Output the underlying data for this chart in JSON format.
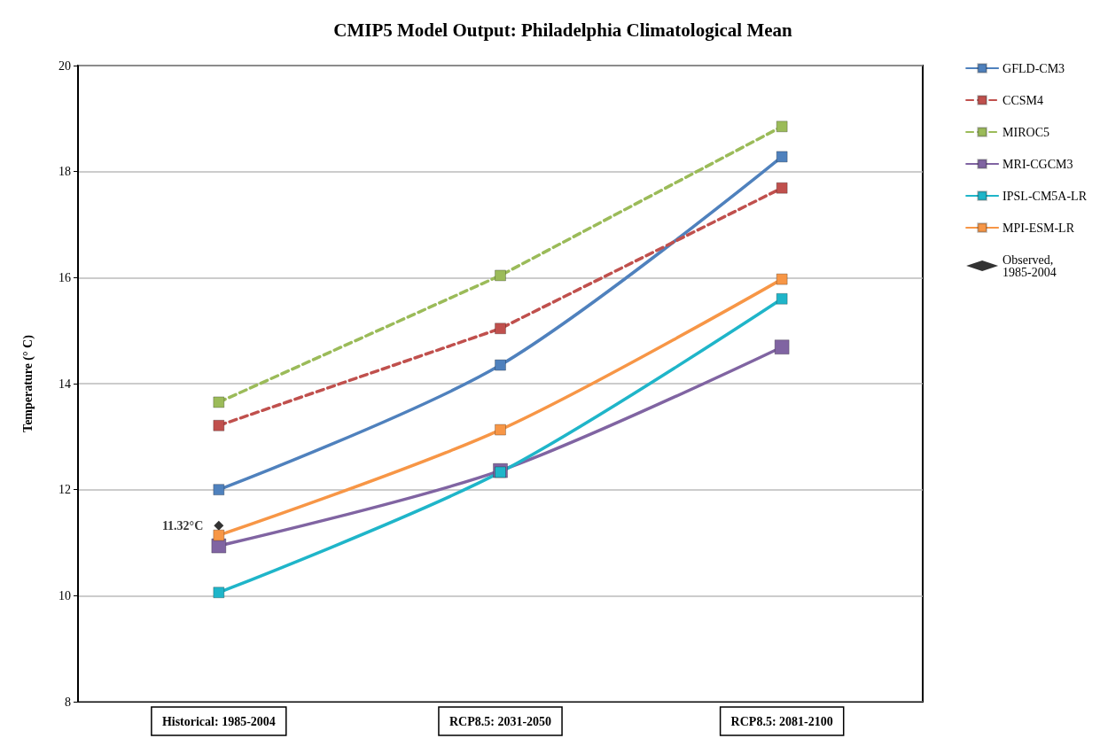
{
  "chart_data": {
    "type": "line",
    "title": "CMIP5 Model Output: Philadelphia Climatological Mean",
    "ylabel": "Temperature (° C)",
    "categories": [
      "Historical: 1985-2004",
      "RCP8.5: 2031-2050",
      "RCP8.5: 2081-2100"
    ],
    "series": [
      {
        "name": "GFLD-CM3",
        "color": "#4f81bd",
        "line_style": "solid",
        "values": [
          12.0,
          14.35,
          18.28
        ]
      },
      {
        "name": "CCSM4",
        "color": "#c0504d",
        "line_style": "dashed",
        "values": [
          13.21,
          15.04,
          17.69
        ]
      },
      {
        "name": "MIROC5",
        "color": "#9bbb59",
        "line_style": "dashed",
        "values": [
          13.65,
          16.04,
          18.85
        ]
      },
      {
        "name": "MRI-CGCM3",
        "color": "#8064a2",
        "line_style": "solid",
        "values": [
          10.94,
          12.36,
          14.69
        ]
      },
      {
        "name": "IPSL-CM5A-LR",
        "color": "#1fb5c9",
        "line_style": "solid",
        "values": [
          10.06,
          12.33,
          15.6
        ]
      },
      {
        "name": "MPI-ESM-LR",
        "color": "#f79646",
        "line_style": "solid",
        "values": [
          11.14,
          13.13,
          15.97
        ]
      },
      {
        "name": "Observed, 1985-2004",
        "type": "scatter",
        "marker": "diamond",
        "color": "#000000",
        "values": [
          11.32,
          null,
          null
        ],
        "value_labels": [
          "11.32°C",
          null,
          null
        ]
      }
    ],
    "ylim": [
      8,
      20
    ],
    "yticks": [
      8,
      10,
      12,
      14,
      16,
      18,
      20
    ],
    "grid": "y",
    "legend": "right",
    "marker": "square"
  }
}
